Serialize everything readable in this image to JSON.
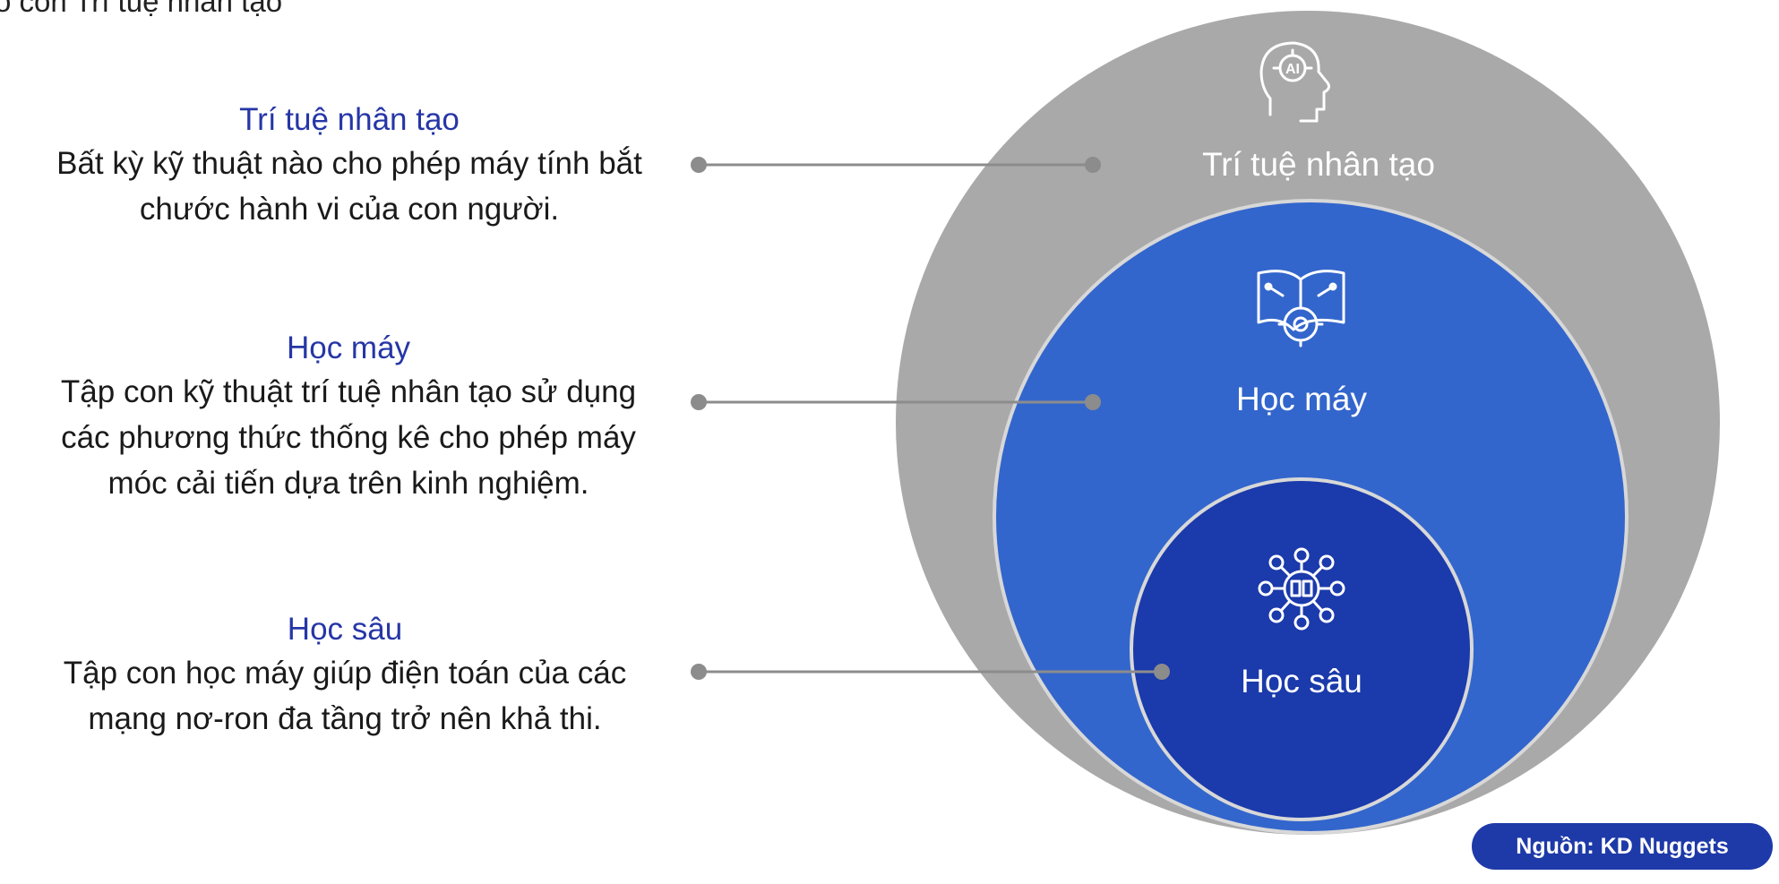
{
  "header_cut_text": "o con Trí tuệ nhân tạo",
  "descriptions": {
    "ai": {
      "title": "Trí tuệ nhân tạo",
      "lines": [
        "Bất kỳ kỹ thuật nào cho phép máy tính bắt",
        "chước hành vi của con người."
      ]
    },
    "ml": {
      "title": "Học máy",
      "lines": [
        "Tập con kỹ thuật trí tuệ nhân tạo sử dụng",
        "các phương thức thống kê cho phép máy",
        "móc cải tiến dựa trên kinh nghiệm."
      ]
    },
    "dl": {
      "title": "Học sâu",
      "lines": [
        "Tập con học máy giúp điện toán của các",
        "mạng nơ-ron đa tầng trở nên khả thi."
      ]
    }
  },
  "circles": {
    "ai_label": "Trí tuệ nhân tạo",
    "ml_label": "Học máy",
    "dl_label": "Học sâu",
    "ai_icon_text": "AI"
  },
  "colors": {
    "outer_circle": "#a9a9a9",
    "middle_circle": "#3366cc",
    "inner_circle": "#1b3aab",
    "title_text": "#2636a6",
    "connector": "#8c8c8c",
    "badge": "#1e3aa8"
  },
  "icons": {
    "ai": "ai-head-icon",
    "ml": "book-gear-icon",
    "dl": "neural-network-icon"
  },
  "source": "Nguồn: KD Nuggets"
}
